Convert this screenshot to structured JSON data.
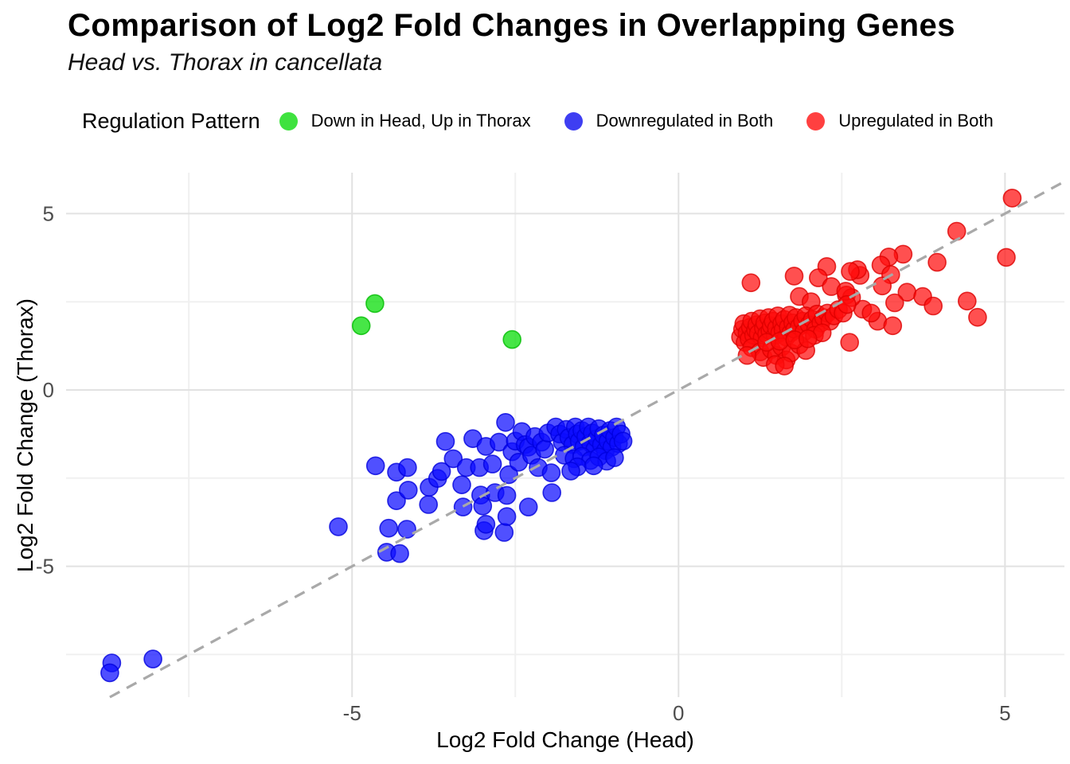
{
  "header": {
    "title": "Comparison of Log2 Fold Changes in Overlapping Genes",
    "subtitle": "Head vs. Thorax in cancellata"
  },
  "legend": {
    "title": "Regulation Pattern",
    "items": [
      {
        "label": "Down in Head, Up in Thorax",
        "color": "#1ddd1d"
      },
      {
        "label": "Downregulated in Both",
        "color": "#1c1cf0"
      },
      {
        "label": "Upregulated in Both",
        "color": "#ff1f1f"
      }
    ]
  },
  "chart_data": {
    "type": "scatter",
    "title": "Comparison of Log2 Fold Changes in Overlapping Genes",
    "subtitle": "Head vs. Thorax in cancellata",
    "xlabel": "Log2 Fold Change (Head)",
    "ylabel": "Log2 Fold Change (Thorax)",
    "legend_title": "Regulation Pattern",
    "xlim": [
      -9.38,
      5.91
    ],
    "ylim": [
      -8.71,
      6.16
    ],
    "x_ticks": [
      -5,
      0,
      5
    ],
    "y_ticks": [
      -5,
      0,
      5
    ],
    "x_minor": [
      -7.5,
      -2.5,
      2.5
    ],
    "y_minor": [
      -7.5,
      -2.5,
      2.5
    ],
    "grid": {
      "major": "#e2e2e2",
      "minor": "#f0f0f0"
    },
    "reference_line": {
      "type": "identity",
      "slope": 1,
      "intercept": 0,
      "style": "dashed",
      "color": "#a9a9a9"
    },
    "series": [
      {
        "id": "down-head-up-thorax",
        "name": "Down in Head, Up in Thorax",
        "color": "#00dd00",
        "stroke": "#00bb00",
        "points": [
          [
            -4.65,
            2.45
          ],
          [
            -4.86,
            1.82
          ],
          [
            -2.55,
            1.43
          ]
        ]
      },
      {
        "id": "downregulated-both",
        "name": "Downregulated in Both",
        "color": "#0d0dff",
        "stroke": "#0000dd",
        "points": [
          [
            -8.68,
            -7.74
          ],
          [
            -8.71,
            -8.02
          ],
          [
            -8.05,
            -7.63
          ],
          [
            -5.21,
            -3.88
          ],
          [
            -4.64,
            -2.15
          ],
          [
            -4.47,
            -4.6
          ],
          [
            -4.44,
            -3.92
          ],
          [
            -4.32,
            -2.33
          ],
          [
            -4.32,
            -3.14
          ],
          [
            -4.27,
            -4.64
          ],
          [
            -4.16,
            -3.95
          ],
          [
            -4.15,
            -2.2
          ],
          [
            -4.14,
            -2.84
          ],
          [
            -3.83,
            -3.25
          ],
          [
            -3.82,
            -2.76
          ],
          [
            -3.69,
            -2.51
          ],
          [
            -3.63,
            -2.31
          ],
          [
            -3.57,
            -1.46
          ],
          [
            -3.32,
            -2.69
          ],
          [
            -3.3,
            -3.32
          ],
          [
            -3.45,
            -1.95
          ],
          [
            -3.25,
            -2.2
          ],
          [
            -3.15,
            -1.38
          ],
          [
            -3.05,
            -2.2
          ],
          [
            -3.03,
            -2.98
          ],
          [
            -3.0,
            -3.29
          ],
          [
            -2.98,
            -3.99
          ],
          [
            -2.95,
            -3.81
          ],
          [
            -2.95,
            -1.6
          ],
          [
            -2.85,
            -2.1
          ],
          [
            -2.81,
            -2.91
          ],
          [
            -2.75,
            -1.48
          ],
          [
            -2.67,
            -4.04
          ],
          [
            -2.65,
            -0.92
          ],
          [
            -2.63,
            -2.99
          ],
          [
            -2.63,
            -3.59
          ],
          [
            -2.6,
            -2.4
          ],
          [
            -2.55,
            -1.75
          ],
          [
            -2.5,
            -1.45
          ],
          [
            -2.45,
            -2.05
          ],
          [
            -2.4,
            -1.18
          ],
          [
            -2.35,
            -1.55
          ],
          [
            -2.3,
            -1.62
          ],
          [
            -2.3,
            -3.32
          ],
          [
            -2.25,
            -1.85
          ],
          [
            -2.2,
            -1.32
          ],
          [
            -2.15,
            -2.2
          ],
          [
            -2.1,
            -1.48
          ],
          [
            -2.05,
            -1.68
          ],
          [
            -2.0,
            -1.22
          ],
          [
            -1.95,
            -2.35
          ],
          [
            -1.94,
            -2.91
          ],
          [
            -1.88,
            -1.05
          ],
          [
            -1.82,
            -1.25
          ],
          [
            -1.78,
            -1.48
          ],
          [
            -1.72,
            -1.12
          ],
          [
            -1.68,
            -1.35
          ],
          [
            -1.62,
            -1.55
          ],
          [
            -1.58,
            -1.05
          ],
          [
            -1.55,
            -1.25
          ],
          [
            -1.52,
            -1.45
          ],
          [
            -1.48,
            -1.15
          ],
          [
            -1.45,
            -1.62
          ],
          [
            -1.42,
            -1.32
          ],
          [
            -1.38,
            -1.05
          ],
          [
            -1.35,
            -1.5
          ],
          [
            -1.32,
            -1.22
          ],
          [
            -1.28,
            -1.68
          ],
          [
            -1.25,
            -1.38
          ],
          [
            -1.22,
            -1.1
          ],
          [
            -1.18,
            -1.55
          ],
          [
            -1.15,
            -1.28
          ],
          [
            -1.12,
            -1.72
          ],
          [
            -1.08,
            -1.45
          ],
          [
            -1.05,
            -1.15
          ],
          [
            -1.02,
            -1.62
          ],
          [
            -0.98,
            -1.35
          ],
          [
            -0.95,
            -1.05
          ],
          [
            -0.92,
            -1.52
          ],
          [
            -0.88,
            -1.25
          ],
          [
            -0.85,
            -1.45
          ],
          [
            -1.75,
            -1.85
          ],
          [
            -1.6,
            -1.95
          ],
          [
            -1.48,
            -1.88
          ],
          [
            -1.35,
            -2.0
          ],
          [
            -1.22,
            -1.9
          ],
          [
            -1.1,
            -2.02
          ],
          [
            -0.98,
            -1.92
          ],
          [
            -1.55,
            -2.18
          ],
          [
            -1.3,
            -2.15
          ],
          [
            -1.65,
            -2.3
          ]
        ]
      },
      {
        "id": "upregulated-both",
        "name": "Upregulated in Both",
        "color": "#ff0d0d",
        "stroke": "#dd0000",
        "points": [
          [
            5.11,
            5.44
          ],
          [
            4.26,
            4.5
          ],
          [
            5.02,
            3.76
          ],
          [
            3.96,
            3.62
          ],
          [
            3.44,
            3.85
          ],
          [
            3.22,
            3.77
          ],
          [
            3.1,
            3.54
          ],
          [
            2.78,
            3.25
          ],
          [
            3.25,
            3.27
          ],
          [
            2.74,
            3.41
          ],
          [
            2.27,
            3.5
          ],
          [
            2.14,
            3.18
          ],
          [
            1.77,
            3.23
          ],
          [
            1.11,
            3.04
          ],
          [
            2.34,
            2.93
          ],
          [
            2.63,
            3.36
          ],
          [
            2.57,
            2.69
          ],
          [
            1.85,
            2.65
          ],
          [
            2.03,
            2.5
          ],
          [
            3.5,
            2.77
          ],
          [
            3.74,
            2.65
          ],
          [
            3.9,
            2.38
          ],
          [
            4.42,
            2.52
          ],
          [
            4.58,
            2.06
          ],
          [
            2.82,
            2.29
          ],
          [
            3.31,
            2.47
          ],
          [
            2.65,
            2.62
          ],
          [
            2.56,
            2.8
          ],
          [
            3.05,
            1.95
          ],
          [
            3.28,
            1.82
          ],
          [
            2.95,
            2.18
          ],
          [
            2.62,
            1.35
          ],
          [
            3.12,
            2.95
          ],
          [
            0.95,
            1.5
          ],
          [
            0.98,
            1.72
          ],
          [
            1.0,
            1.88
          ],
          [
            1.02,
            1.35
          ],
          [
            1.05,
            1.62
          ],
          [
            1.08,
            1.45
          ],
          [
            1.1,
            1.78
          ],
          [
            1.12,
            1.95
          ],
          [
            1.15,
            1.55
          ],
          [
            1.18,
            1.7
          ],
          [
            1.2,
            1.85
          ],
          [
            1.22,
            1.6
          ],
          [
            1.25,
            2.02
          ],
          [
            1.28,
            1.48
          ],
          [
            1.3,
            1.75
          ],
          [
            1.32,
            1.9
          ],
          [
            1.35,
            1.58
          ],
          [
            1.38,
            2.05
          ],
          [
            1.4,
            1.68
          ],
          [
            1.42,
            1.82
          ],
          [
            1.45,
            1.95
          ],
          [
            1.48,
            1.55
          ],
          [
            1.5,
            1.75
          ],
          [
            1.52,
            2.1
          ],
          [
            1.55,
            1.62
          ],
          [
            1.58,
            1.88
          ],
          [
            1.6,
            1.7
          ],
          [
            1.62,
            2.0
          ],
          [
            1.65,
            1.5
          ],
          [
            1.68,
            1.78
          ],
          [
            1.7,
            2.12
          ],
          [
            1.72,
            1.62
          ],
          [
            1.75,
            1.9
          ],
          [
            1.78,
            1.72
          ],
          [
            1.8,
            2.05
          ],
          [
            1.85,
            1.8
          ],
          [
            1.9,
            1.95
          ],
          [
            1.92,
            1.65
          ],
          [
            1.95,
            2.1
          ],
          [
            2.0,
            1.85
          ],
          [
            2.05,
            2.0
          ],
          [
            2.1,
            1.72
          ],
          [
            2.12,
            2.15
          ],
          [
            2.18,
            1.9
          ],
          [
            2.22,
            2.05
          ],
          [
            2.28,
            2.18
          ],
          [
            2.32,
            1.95
          ],
          [
            2.38,
            2.1
          ],
          [
            2.45,
            2.28
          ],
          [
            2.52,
            2.18
          ],
          [
            2.58,
            2.42
          ],
          [
            1.12,
            1.2
          ],
          [
            1.25,
            1.08
          ],
          [
            1.3,
            0.92
          ],
          [
            1.42,
            1.15
          ],
          [
            1.5,
            0.98
          ],
          [
            1.58,
            1.22
          ],
          [
            1.65,
            0.85
          ],
          [
            1.72,
            1.05
          ],
          [
            1.85,
            1.28
          ],
          [
            1.95,
            1.12
          ],
          [
            2.08,
            1.55
          ],
          [
            2.2,
            1.62
          ],
          [
            1.05,
            0.98
          ],
          [
            1.48,
            0.72
          ],
          [
            1.62,
            0.68
          ],
          [
            1.35,
            1.35
          ],
          [
            1.55,
            1.38
          ],
          [
            1.78,
            1.42
          ],
          [
            1.98,
            1.45
          ]
        ]
      }
    ]
  }
}
